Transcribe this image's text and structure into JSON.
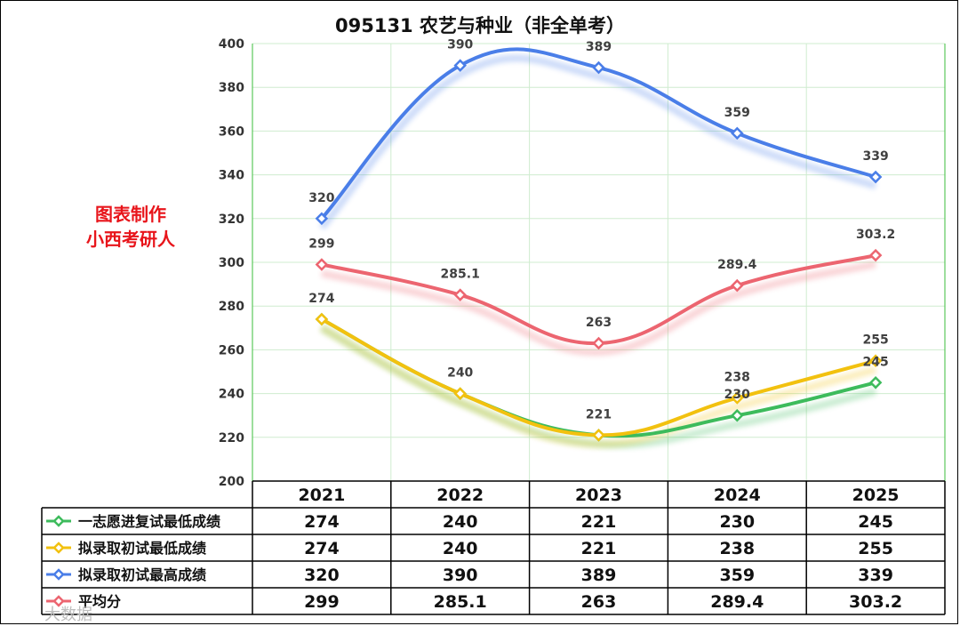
{
  "chart_data": {
    "type": "line",
    "title": "095131 农艺与种业（非全单考）",
    "categories": [
      "2021",
      "2022",
      "2023",
      "2024",
      "2025"
    ],
    "ylim": [
      200,
      400
    ],
    "yticks": [
      200,
      220,
      240,
      260,
      280,
      300,
      320,
      340,
      360,
      380,
      400
    ],
    "grid": true,
    "legend": "data-table-below",
    "series": [
      {
        "name": "一志愿进复试最低成绩",
        "color": "#3dbb5c",
        "values": [
          274,
          240,
          221,
          230,
          245
        ],
        "labels": [
          "",
          "",
          "",
          "230",
          "245"
        ]
      },
      {
        "name": "拟录取初试最低成绩",
        "color": "#f2c10f",
        "values": [
          274,
          240,
          221,
          238,
          255
        ],
        "labels": [
          "274",
          "240",
          "221",
          "238",
          "255"
        ]
      },
      {
        "name": "拟录取初试最高成绩",
        "color": "#4a7ee8",
        "values": [
          320,
          390,
          389,
          359,
          339
        ],
        "labels": [
          "320",
          "390",
          "389",
          "359",
          "339"
        ]
      },
      {
        "name": "平均分",
        "color": "#ec6570",
        "values": [
          299,
          285.1,
          263,
          289.4,
          303.2
        ],
        "labels": [
          "299",
          "285.1",
          "263",
          "289.4",
          "303.2"
        ]
      }
    ],
    "table": {
      "header": [
        "2021",
        "2022",
        "2023",
        "2024",
        "2025"
      ],
      "rows": [
        [
          "274",
          "240",
          "221",
          "230",
          "245"
        ],
        [
          "274",
          "240",
          "221",
          "238",
          "255"
        ],
        [
          "320",
          "390",
          "389",
          "359",
          "339"
        ],
        [
          "299",
          "285.1",
          "263",
          "289.4",
          "303.2"
        ]
      ]
    },
    "annotation": [
      "图表制作",
      "小西考研人"
    ],
    "footer_watermark": "大数据"
  }
}
